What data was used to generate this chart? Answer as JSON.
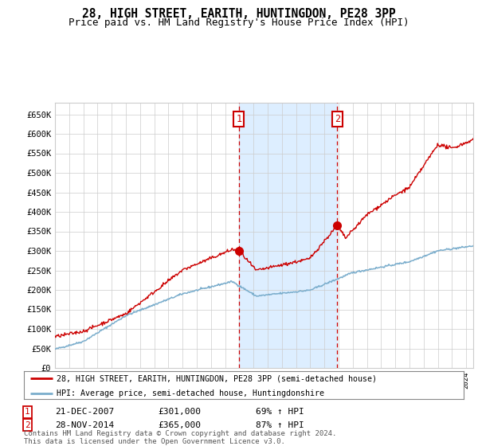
{
  "title": "28, HIGH STREET, EARITH, HUNTINGDON, PE28 3PP",
  "subtitle": "Price paid vs. HM Land Registry's House Price Index (HPI)",
  "ylabel_ticks": [
    "£0",
    "£50K",
    "£100K",
    "£150K",
    "£200K",
    "£250K",
    "£300K",
    "£350K",
    "£400K",
    "£450K",
    "£500K",
    "£550K",
    "£600K",
    "£650K"
  ],
  "ytick_values": [
    0,
    50000,
    100000,
    150000,
    200000,
    250000,
    300000,
    350000,
    400000,
    450000,
    500000,
    550000,
    600000,
    650000
  ],
  "ylim": [
    0,
    680000
  ],
  "transaction1": {
    "date_label": "21-DEC-2007",
    "price": 301000,
    "hpi_pct": "69% ↑ HPI",
    "year": 2007.97
  },
  "transaction2": {
    "date_label": "28-NOV-2014",
    "price": 365000,
    "hpi_pct": "87% ↑ HPI",
    "year": 2014.91
  },
  "legend_line1": "28, HIGH STREET, EARITH, HUNTINGDON, PE28 3PP (semi-detached house)",
  "legend_line2": "HPI: Average price, semi-detached house, Huntingdonshire",
  "footer": "Contains HM Land Registry data © Crown copyright and database right 2024.\nThis data is licensed under the Open Government Licence v3.0.",
  "red_line_color": "#cc0000",
  "blue_line_color": "#7aadcc",
  "shade_color": "#ddeeff",
  "bg_color": "#ffffff",
  "grid_color": "#cccccc",
  "title_fontsize": 10.5,
  "subtitle_fontsize": 9.0,
  "xstart": 1995.0,
  "xend": 2024.5
}
